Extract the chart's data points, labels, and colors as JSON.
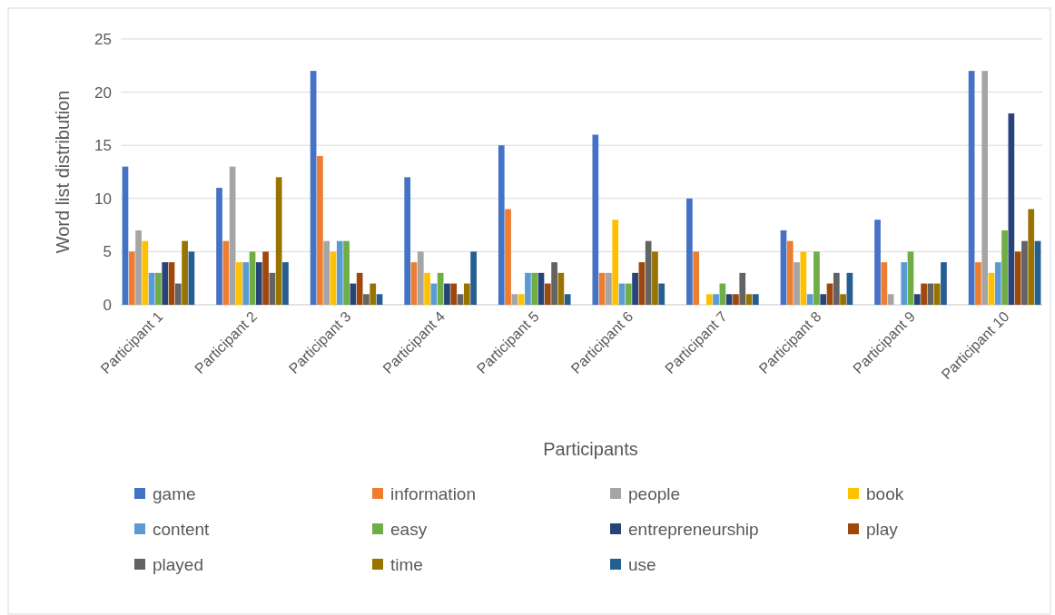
{
  "chart_data": {
    "type": "bar",
    "xlabel": "Participants",
    "ylabel": "Word list distribution",
    "categories": [
      "Participant 1",
      "Participant 2",
      "Participant 3",
      "Participant 4",
      "Participant 5",
      "Participant 6",
      "Participant 7",
      "Participant 8",
      "Participant 9",
      "Participant 10"
    ],
    "series": [
      {
        "name": "game",
        "color": "#4472c4",
        "values": [
          13,
          11,
          22,
          12,
          15,
          16,
          10,
          7,
          8,
          22
        ]
      },
      {
        "name": "information",
        "color": "#ed7d31",
        "values": [
          5,
          6,
          14,
          4,
          9,
          3,
          5,
          6,
          4,
          4
        ]
      },
      {
        "name": "people",
        "color": "#a5a5a5",
        "values": [
          7,
          13,
          6,
          5,
          1,
          3,
          0,
          4,
          1,
          22
        ]
      },
      {
        "name": "book",
        "color": "#ffc000",
        "values": [
          6,
          4,
          5,
          3,
          1,
          8,
          1,
          5,
          0,
          3
        ]
      },
      {
        "name": "content",
        "color": "#5b9bd5",
        "values": [
          3,
          4,
          6,
          2,
          3,
          2,
          1,
          1,
          4,
          4
        ]
      },
      {
        "name": "easy",
        "color": "#70ad47",
        "values": [
          3,
          5,
          6,
          3,
          3,
          2,
          2,
          5,
          5,
          7
        ]
      },
      {
        "name": "entrepreneurship",
        "color": "#264478",
        "values": [
          4,
          4,
          2,
          2,
          3,
          3,
          1,
          1,
          1,
          18
        ]
      },
      {
        "name": "play",
        "color": "#9e480e",
        "values": [
          4,
          5,
          3,
          2,
          2,
          4,
          1,
          2,
          2,
          5
        ]
      },
      {
        "name": "played",
        "color": "#636363",
        "values": [
          2,
          3,
          1,
          1,
          4,
          6,
          3,
          3,
          2,
          6
        ]
      },
      {
        "name": "time",
        "color": "#997300",
        "values": [
          6,
          12,
          2,
          2,
          3,
          5,
          1,
          1,
          2,
          9
        ]
      },
      {
        "name": "use",
        "color": "#255e91",
        "values": [
          5,
          4,
          1,
          5,
          1,
          2,
          1,
          3,
          4,
          6
        ]
      }
    ],
    "ylim": [
      0,
      25
    ],
    "yticks": [
      0,
      5,
      10,
      15,
      20,
      25
    ],
    "grid": "y",
    "legend": "bottom"
  }
}
